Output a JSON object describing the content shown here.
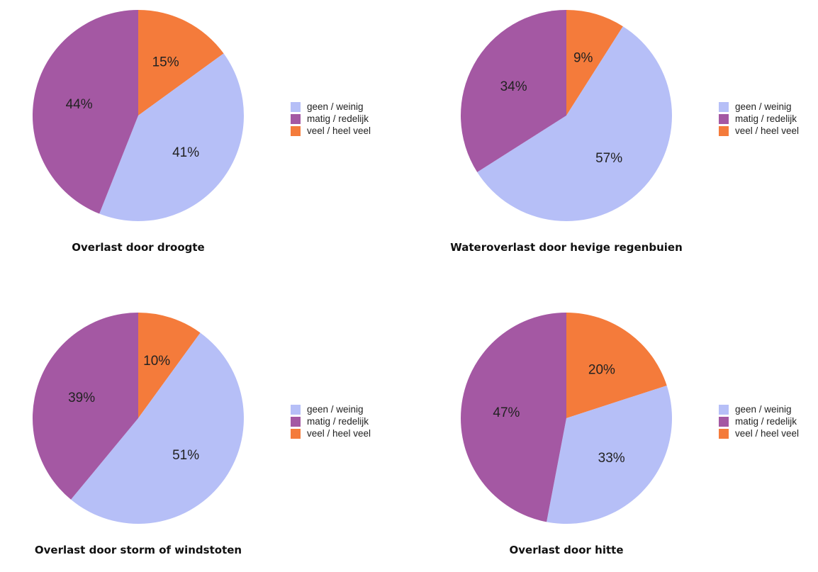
{
  "colors": {
    "geen_weinig": "#b6bff7",
    "matig_redelijk": "#a458a3",
    "veel_heel_veel": "#f47b3b"
  },
  "chart_data": [
    {
      "type": "pie",
      "title": "Overlast door droogte",
      "categories": [
        "geen / weinig",
        "matig / redelijk",
        "veel / heel veel"
      ],
      "values": [
        41,
        44,
        15
      ],
      "labels": [
        "41%",
        "44%",
        "15%"
      ],
      "legend": "right"
    },
    {
      "type": "pie",
      "title": "Wateroverlast door hevige regenbuien",
      "categories": [
        "geen / weinig",
        "matig / redelijk",
        "veel / heel veel"
      ],
      "values": [
        57,
        34,
        9
      ],
      "labels": [
        "57%",
        "34%",
        "9%"
      ],
      "legend": "right"
    },
    {
      "type": "pie",
      "title": "Overlast door storm of windstoten",
      "categories": [
        "geen / weinig",
        "matig / redelijk",
        "veel / heel veel"
      ],
      "values": [
        51,
        39,
        10
      ],
      "labels": [
        "51%",
        "39%",
        "10%"
      ],
      "legend": "right"
    },
    {
      "type": "pie",
      "title": "Overlast door hitte",
      "categories": [
        "geen / weinig",
        "matig / redelijk",
        "veel / heel veel"
      ],
      "values": [
        33,
        47,
        20
      ],
      "labels": [
        "33%",
        "47%",
        "20%"
      ],
      "legend": "right"
    }
  ]
}
